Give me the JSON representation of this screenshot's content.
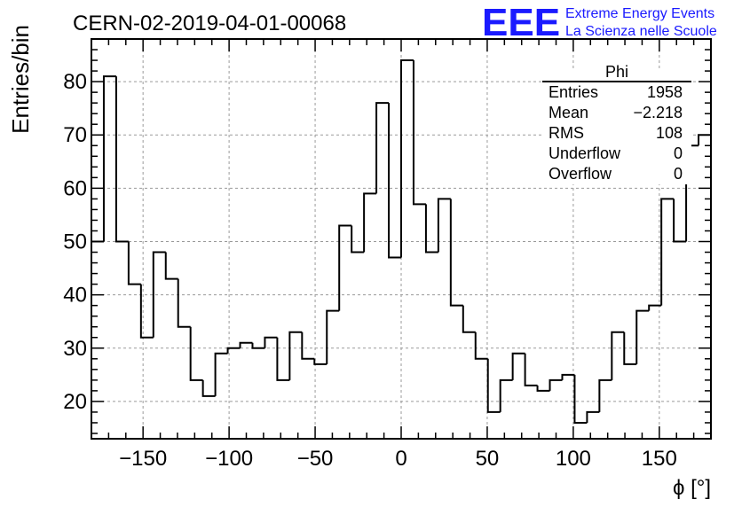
{
  "header": {
    "run_title": "CERN-02-2019-04-01-00068",
    "logo_text": "EEE",
    "logo_line1": "Extreme Energy Events",
    "logo_line2": "La Scienza nelle Scuole"
  },
  "stats_box": {
    "title": "Phi",
    "rows": [
      {
        "label": "Entries",
        "value": "1958"
      },
      {
        "label": "Mean",
        "value": "−2.218"
      },
      {
        "label": "RMS",
        "value": "108"
      },
      {
        "label": "Underflow",
        "value": "0"
      },
      {
        "label": "Overflow",
        "value": "0"
      }
    ]
  },
  "colors": {
    "logo": "#1a1aff",
    "line": "#000000",
    "grid": "#9a9a9a"
  },
  "chart_data": {
    "type": "histogram",
    "ylabel": "Entries/bin",
    "xlabel": "ϕ [°]",
    "xlim": [
      -180,
      180
    ],
    "ylim": [
      13,
      88
    ],
    "grid": true,
    "bin_width": 7.2,
    "x_ticks": [
      -150,
      -100,
      -50,
      0,
      50,
      100,
      150
    ],
    "x_tick_labels": [
      "−150",
      "−100",
      "−50",
      "0",
      "50",
      "100",
      "150"
    ],
    "y_ticks": [
      20,
      30,
      40,
      50,
      60,
      70,
      80
    ],
    "y_tick_labels": [
      "20",
      "30",
      "40",
      "50",
      "60",
      "70",
      "80"
    ],
    "values": [
      50,
      81,
      50,
      42,
      32,
      48,
      43,
      34,
      24,
      21,
      29,
      30,
      31,
      30,
      32,
      24,
      33,
      28,
      27,
      37,
      53,
      48,
      59,
      76,
      47,
      84,
      57,
      48,
      58,
      38,
      33,
      28,
      18,
      24,
      29,
      23,
      22,
      24,
      25,
      16,
      18,
      24,
      33,
      27,
      37,
      38,
      58,
      50,
      68,
      70
    ]
  }
}
